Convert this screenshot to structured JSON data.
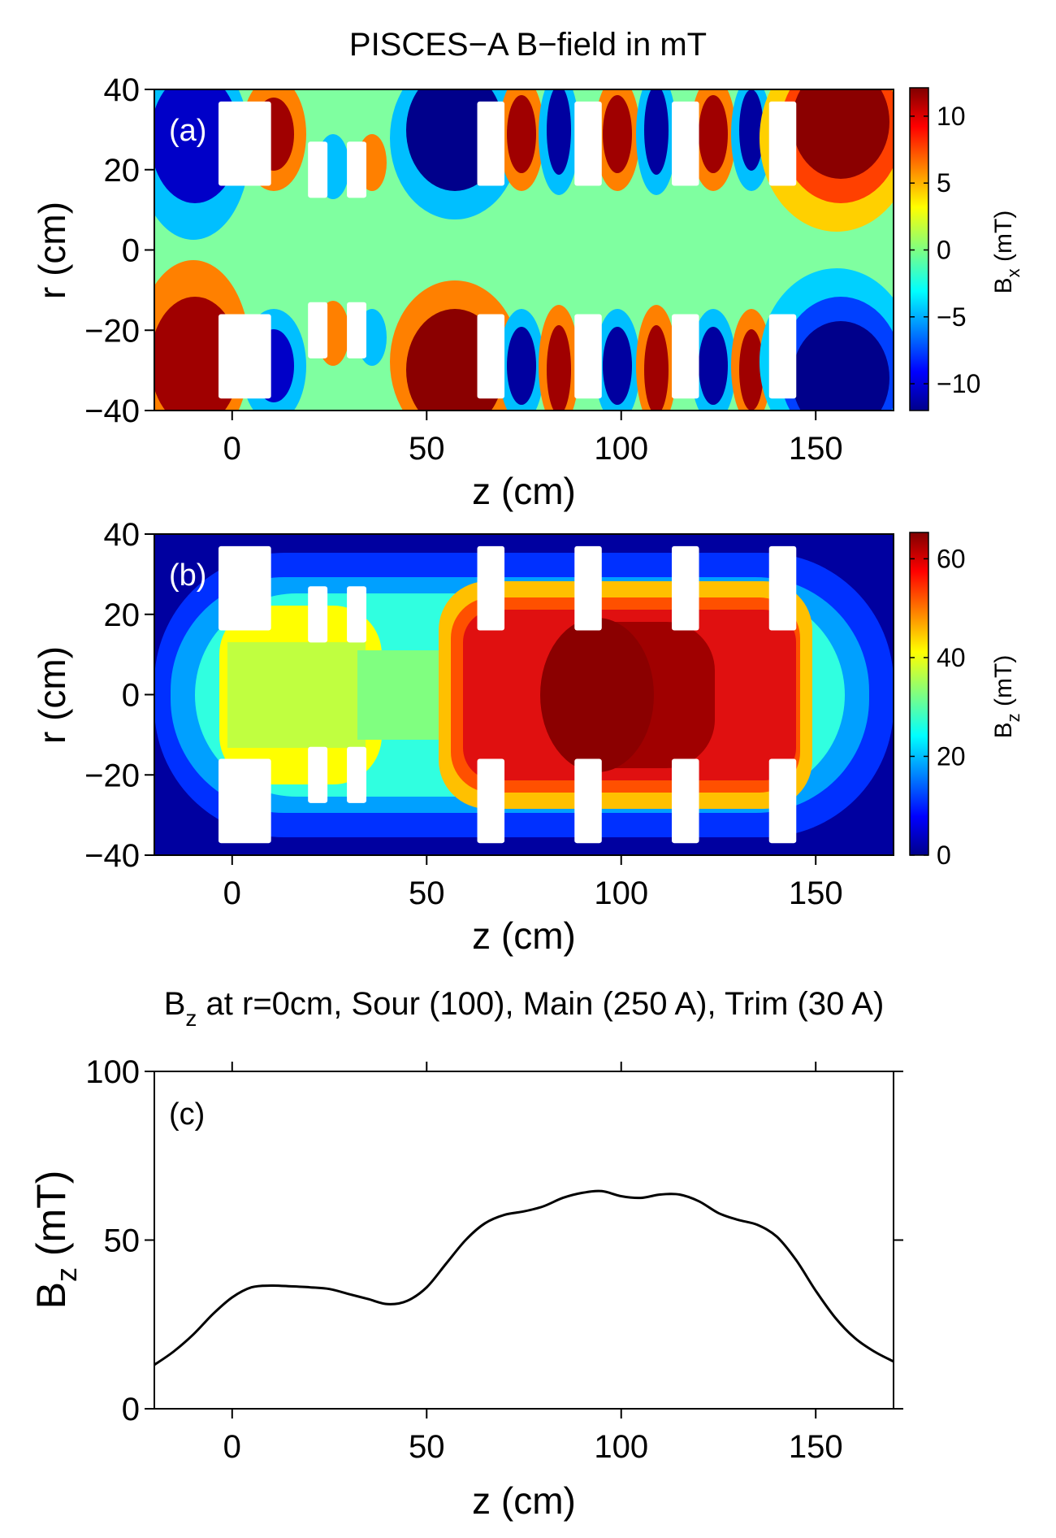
{
  "title": "PISCES−A B−field in mT",
  "colors": {
    "axis": "#000000",
    "coil": "#ffffff",
    "line": "#000000"
  },
  "chart_data": [
    {
      "id": "a",
      "type": "heatmap",
      "panel_label": "(a)",
      "title": "PISCES−A B−field in mT",
      "xlabel": "z (cm)",
      "ylabel": "r (cm)",
      "xlim": [
        -20,
        170
      ],
      "ylim": [
        -40,
        40
      ],
      "xticks": [
        0,
        50,
        100,
        150
      ],
      "yticks": [
        40,
        20,
        0,
        -20,
        -40
      ],
      "colorbar": {
        "label_main": "B",
        "label_sub": "x",
        "label_unit": " (mT)",
        "range": [
          -12,
          12
        ],
        "ticks": [
          10,
          5,
          0,
          -5,
          -10
        ],
        "tick_labels": [
          "10",
          "5",
          "0",
          "−5",
          "−10"
        ],
        "colormap": "jet"
      }
    },
    {
      "id": "b",
      "type": "heatmap",
      "panel_label": "(b)",
      "xlabel": "z (cm)",
      "ylabel": "r (cm)",
      "xlim": [
        -20,
        170
      ],
      "ylim": [
        -40,
        40
      ],
      "xticks": [
        0,
        50,
        100,
        150
      ],
      "yticks": [
        40,
        20,
        0,
        -20,
        -40
      ],
      "colorbar": {
        "label_main": "B",
        "label_sub": "z",
        "label_unit": " (mT)",
        "range": [
          0,
          65
        ],
        "ticks": [
          60,
          40,
          20,
          0
        ],
        "tick_labels": [
          "60",
          "40",
          "20",
          "0"
        ],
        "colormap": "jet"
      }
    },
    {
      "id": "c",
      "type": "line",
      "panel_label": "(c)",
      "title_main": "B",
      "title_sub": "z",
      "title_rest": " at r=0cm, Sour (100), Main (250 A), Trim (30 A)",
      "xlabel": "z (cm)",
      "ylabel_main": "B",
      "ylabel_sub": "z",
      "ylabel_unit": " (mT)",
      "xlim": [
        -20,
        170
      ],
      "ylim": [
        0,
        100
      ],
      "xticks": [
        0,
        50,
        100,
        150
      ],
      "yticks": [
        100,
        50,
        0
      ],
      "series": [
        {
          "x": [
            -20,
            -15,
            -10,
            -5,
            0,
            5,
            10,
            15,
            20,
            25,
            30,
            35,
            40,
            45,
            50,
            55,
            60,
            65,
            70,
            75,
            80,
            85,
            90,
            95,
            100,
            105,
            110,
            115,
            120,
            125,
            130,
            135,
            140,
            145,
            150,
            155,
            160,
            165,
            170
          ],
          "y": [
            13,
            17,
            22,
            28,
            33,
            36,
            36.5,
            36.3,
            36,
            35.5,
            34,
            32.5,
            31,
            32,
            36,
            43,
            50,
            55,
            57.5,
            58.5,
            60,
            62.5,
            64,
            64.5,
            63,
            62.5,
            63.5,
            63.5,
            61.5,
            58,
            56,
            54.5,
            51,
            44,
            35,
            27,
            21,
            17,
            14
          ]
        }
      ]
    }
  ],
  "coils_cm": [
    {
      "z0": -3.5,
      "z1": 10,
      "r0": 16,
      "r1": 37
    },
    {
      "z0": 19.5,
      "z1": 24.5,
      "r0": 13,
      "r1": 27
    },
    {
      "z0": 29.5,
      "z1": 34.5,
      "r0": 13,
      "r1": 27
    },
    {
      "z0": 63,
      "z1": 70,
      "r0": 16,
      "r1": 37
    },
    {
      "z0": 88,
      "z1": 95,
      "r0": 16,
      "r1": 37
    },
    {
      "z0": 113,
      "z1": 120,
      "r0": 16,
      "r1": 37
    },
    {
      "z0": 138,
      "z1": 145,
      "r0": 16,
      "r1": 37
    }
  ]
}
